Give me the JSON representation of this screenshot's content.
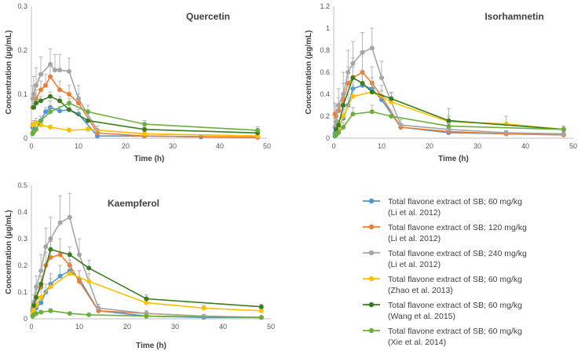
{
  "figure": {
    "background": "#ffffff"
  },
  "series_meta": [
    {
      "name": "Total flavone extract of SB; 60 mg/kg",
      "ref": "(Li et al. 2012)",
      "color": "#4e97d6"
    },
    {
      "name": "Total flavone extract of SB; 120 mg/kg",
      "ref": "(Li et al. 2012)",
      "color": "#ed7d31"
    },
    {
      "name": "Total flavone extract of SB; 240 mg/kg",
      "ref": "(Li et al. 2012)",
      "color": "#a5a5a5"
    },
    {
      "name": "Total flavone extract of SB; 60 mg/kg",
      "ref": "(Zhao et al. 2013)",
      "color": "#ffc000"
    },
    {
      "name": "Total flavone extract of SB; 60 mg/kg",
      "ref": "(Wang et al. 2015)",
      "color": "#3a7d1f"
    },
    {
      "name": "Total flavone extract of SB; 60 mg/kg",
      "ref": "(Xie et al. 2014)",
      "color": "#6aaf3d"
    }
  ],
  "chart_data": [
    {
      "type": "line",
      "title": "Quercetin",
      "xlabel": "Time (h)",
      "ylabel": "Concentration (μg/mL)",
      "xlim": [
        0,
        50
      ],
      "ylim": [
        0,
        0.3
      ],
      "xticks": [
        0,
        10,
        20,
        30,
        40,
        50
      ],
      "yticks": [
        0,
        0.1,
        0.2,
        0.3
      ],
      "ytick_labels": [
        "0",
        "0.1",
        "0.2",
        "0.3"
      ],
      "series": [
        {
          "name": "Total flavone extract of SB; 60 mg/kg (Li et al. 2012)",
          "x": [
            0.25,
            0.5,
            1,
            2,
            3,
            4,
            6,
            8,
            10,
            14,
            24,
            36,
            48
          ],
          "y": [
            0.025,
            0.03,
            0.035,
            0.04,
            0.06,
            0.07,
            0.062,
            0.065,
            0.055,
            0.005,
            0.005,
            0.003,
            0.002
          ],
          "err": [
            0.01,
            0.01,
            0.01,
            0.01,
            0.01,
            0.015,
            0.01,
            0.012,
            0.01,
            0.003,
            0.002,
            0.002,
            0.002
          ]
        },
        {
          "name": "Total flavone extract of SB; 120 mg/kg (Li et al. 2012)",
          "x": [
            0.25,
            0.5,
            1,
            2,
            3,
            4,
            6,
            8,
            10,
            14,
            24,
            48
          ],
          "y": [
            0.07,
            0.07,
            0.09,
            0.11,
            0.12,
            0.14,
            0.11,
            0.1,
            0.08,
            0.012,
            0.005,
            0.002
          ],
          "err": [
            0.02,
            0.02,
            0.02,
            0.02,
            0.025,
            0.03,
            0.02,
            0.02,
            0.02,
            0.005,
            0.003,
            0.002
          ]
        },
        {
          "name": "Total flavone extract of SB; 240 mg/kg (Li et al. 2012)",
          "x": [
            0.25,
            0.5,
            1,
            2,
            4,
            5,
            6,
            8,
            10,
            14,
            24,
            48
          ],
          "y": [
            0.09,
            0.1,
            0.12,
            0.145,
            0.168,
            0.155,
            0.155,
            0.152,
            0.09,
            0.018,
            0.01,
            0.005
          ],
          "err": [
            0.03,
            0.04,
            0.04,
            0.04,
            0.035,
            0.035,
            0.035,
            0.03,
            0.03,
            0.01,
            0.005,
            0.003
          ]
        },
        {
          "name": "Total flavone extract of SB; 60 mg/kg (Zhao et al. 2013)",
          "x": [
            0.25,
            0.5,
            1,
            2,
            4,
            8,
            12,
            24,
            48
          ],
          "y": [
            0.03,
            0.032,
            0.035,
            0.03,
            0.025,
            0.018,
            0.02,
            0.01,
            0.005
          ],
          "err": [
            0.005,
            0.005,
            0.005,
            0.005,
            0.005,
            0.005,
            0.005,
            0.003,
            0.002
          ]
        },
        {
          "name": "Total flavone extract of SB; 60 mg/kg (Wang et al. 2015)",
          "x": [
            0.5,
            1,
            2,
            4,
            6,
            8,
            12,
            24,
            48
          ],
          "y": [
            0.07,
            0.08,
            0.085,
            0.095,
            0.085,
            0.065,
            0.04,
            0.02,
            0.012
          ],
          "err": [
            0.01,
            0.01,
            0.01,
            0.01,
            0.01,
            0.01,
            0.01,
            0.005,
            0.005
          ]
        },
        {
          "name": "Total flavone extract of SB; 60 mg/kg (Xie et al. 2014)",
          "x": [
            0.25,
            0.5,
            1,
            2,
            4,
            8,
            12,
            24,
            48
          ],
          "y": [
            0.01,
            0.015,
            0.02,
            0.04,
            0.06,
            0.08,
            0.06,
            0.032,
            0.018
          ],
          "err": [
            0.005,
            0.005,
            0.005,
            0.01,
            0.01,
            0.01,
            0.015,
            0.008,
            0.008
          ]
        }
      ]
    },
    {
      "type": "line",
      "title": "Isorhamnetin",
      "xlabel": "Time (h)",
      "ylabel": "Concentration (μg/mL)",
      "xlim": [
        0,
        50
      ],
      "ylim": [
        0,
        1.2
      ],
      "xticks": [
        0,
        10,
        20,
        30,
        40,
        50
      ],
      "yticks": [
        0,
        0.2,
        0.4,
        0.6,
        0.8,
        1.0,
        1.2
      ],
      "ytick_labels": [
        "0",
        "0.2",
        "0.4",
        "0.6",
        "0.8",
        "1",
        "1.2"
      ],
      "series": [
        {
          "name": "Total flavone extract of SB; 60 mg/kg (Li et al. 2012)",
          "x": [
            0.25,
            0.5,
            1,
            2,
            3,
            4,
            6,
            8,
            10,
            14,
            24,
            36,
            48
          ],
          "y": [
            0.04,
            0.06,
            0.1,
            0.18,
            0.3,
            0.45,
            0.48,
            0.45,
            0.35,
            0.1,
            0.05,
            0.04,
            0.03
          ],
          "err": [
            0.02,
            0.03,
            0.05,
            0.08,
            0.1,
            0.12,
            0.12,
            0.1,
            0.08,
            0.03,
            0.02,
            0.02,
            0.02
          ]
        },
        {
          "name": "Total flavone extract of SB; 120 mg/kg (Li et al. 2012)",
          "x": [
            0.25,
            0.5,
            1,
            2,
            3,
            4,
            6,
            8,
            10,
            14,
            24,
            36,
            48
          ],
          "y": [
            0.22,
            0.2,
            0.25,
            0.35,
            0.5,
            0.55,
            0.6,
            0.5,
            0.38,
            0.1,
            0.06,
            0.04,
            0.03
          ],
          "err": [
            0.1,
            0.1,
            0.12,
            0.15,
            0.15,
            0.18,
            0.18,
            0.15,
            0.1,
            0.03,
            0.02,
            0.02,
            0.02
          ]
        },
        {
          "name": "Total flavone extract of SB; 240 mg/kg (Li et al. 2012)",
          "x": [
            0.25,
            0.5,
            1,
            2,
            3,
            4,
            6,
            8,
            10,
            14,
            24,
            36,
            48
          ],
          "y": [
            0.1,
            0.15,
            0.3,
            0.4,
            0.6,
            0.68,
            0.78,
            0.82,
            0.55,
            0.12,
            0.08,
            0.05,
            0.04
          ],
          "err": [
            0.08,
            0.1,
            0.15,
            0.2,
            0.2,
            0.2,
            0.18,
            0.18,
            0.15,
            0.05,
            0.03,
            0.02,
            0.02
          ]
        },
        {
          "name": "Total flavone extract of SB; 60 mg/kg (Zhao et al. 2013)",
          "x": [
            0.25,
            0.5,
            1,
            2,
            4,
            8,
            12,
            24,
            36,
            48
          ],
          "y": [
            0.02,
            0.03,
            0.08,
            0.2,
            0.38,
            0.42,
            0.33,
            0.15,
            0.13,
            0.08
          ],
          "err": [
            0.01,
            0.02,
            0.04,
            0.08,
            0.1,
            0.1,
            0.08,
            0.12,
            0.07,
            0.03
          ]
        },
        {
          "name": "Total flavone extract of SB; 60 mg/kg (Wang et al. 2015)",
          "x": [
            0.5,
            1,
            2,
            4,
            6,
            8,
            12,
            24,
            48
          ],
          "y": [
            0.08,
            0.12,
            0.3,
            0.55,
            0.5,
            0.42,
            0.36,
            0.16,
            0.08
          ],
          "err": [
            0.04,
            0.05,
            0.1,
            0.1,
            0.1,
            0.08,
            0.06,
            0.04,
            0.03
          ]
        },
        {
          "name": "Total flavone extract of SB; 60 mg/kg (Xie et al. 2014)",
          "x": [
            0.25,
            0.5,
            1,
            2,
            4,
            8,
            12,
            24,
            48
          ],
          "y": [
            0.02,
            0.03,
            0.05,
            0.1,
            0.22,
            0.24,
            0.2,
            0.11,
            0.08
          ],
          "err": [
            0.01,
            0.02,
            0.02,
            0.04,
            0.06,
            0.06,
            0.05,
            0.03,
            0.03
          ]
        }
      ]
    },
    {
      "type": "line",
      "title": "Kaempferol",
      "xlabel": "Time (h)",
      "ylabel": "Concentration (μg/mL)",
      "xlim": [
        0,
        50
      ],
      "ylim": [
        0,
        0.5
      ],
      "xticks": [
        0,
        10,
        20,
        30,
        40,
        50
      ],
      "yticks": [
        0,
        0.1,
        0.2,
        0.3,
        0.4,
        0.5
      ],
      "ytick_labels": [
        "0",
        "0.1",
        "0.2",
        "0.3",
        "0.4",
        "0.5"
      ],
      "series": [
        {
          "name": "Total flavone extract of SB; 60 mg/kg (Li et al. 2012)",
          "x": [
            0.25,
            0.5,
            1,
            2,
            3,
            4,
            6,
            8,
            10,
            14,
            24,
            36,
            48
          ],
          "y": [
            0.02,
            0.03,
            0.04,
            0.06,
            0.1,
            0.13,
            0.16,
            0.18,
            0.15,
            0.03,
            0.01,
            0.005,
            0.005
          ],
          "err": [
            0.01,
            0.01,
            0.02,
            0.02,
            0.03,
            0.04,
            0.04,
            0.04,
            0.03,
            0.01,
            0.005,
            0.003,
            0.003
          ]
        },
        {
          "name": "Total flavone extract of SB; 120 mg/kg (Li et al. 2012)",
          "x": [
            0.25,
            0.5,
            1,
            2,
            3,
            4,
            6,
            8,
            10,
            14,
            24,
            36,
            48
          ],
          "y": [
            0.03,
            0.05,
            0.08,
            0.12,
            0.2,
            0.23,
            0.24,
            0.2,
            0.14,
            0.03,
            0.02,
            0.01,
            0.005
          ],
          "err": [
            0.01,
            0.02,
            0.03,
            0.04,
            0.05,
            0.06,
            0.06,
            0.05,
            0.04,
            0.01,
            0.01,
            0.005,
            0.003
          ]
        },
        {
          "name": "Total flavone extract of SB; 240 mg/kg (Li et al. 2012)",
          "x": [
            0.25,
            0.5,
            1,
            2,
            3,
            4,
            6,
            8,
            10,
            14,
            24,
            36,
            48
          ],
          "y": [
            0.04,
            0.06,
            0.12,
            0.18,
            0.27,
            0.3,
            0.36,
            0.38,
            0.24,
            0.04,
            0.02,
            0.01,
            0.005
          ],
          "err": [
            0.02,
            0.03,
            0.04,
            0.06,
            0.07,
            0.08,
            0.1,
            0.09,
            0.06,
            0.015,
            0.01,
            0.005,
            0.003
          ]
        },
        {
          "name": "Total flavone extract of SB; 60 mg/kg (Zhao et al. 2013)",
          "x": [
            0.25,
            0.5,
            1,
            2,
            4,
            8,
            12,
            24,
            36,
            48
          ],
          "y": [
            0.02,
            0.03,
            0.05,
            0.08,
            0.12,
            0.17,
            0.14,
            0.06,
            0.04,
            0.03
          ],
          "err": [
            0.01,
            0.01,
            0.02,
            0.03,
            0.03,
            0.04,
            0.03,
            0.02,
            0.01,
            0.01
          ]
        },
        {
          "name": "Total flavone extract of SB; 60 mg/kg (Wang et al. 2015)",
          "x": [
            0.5,
            1,
            2,
            4,
            8,
            12,
            24,
            48
          ],
          "y": [
            0.05,
            0.08,
            0.13,
            0.26,
            0.24,
            0.19,
            0.075,
            0.045
          ],
          "err": [
            0.02,
            0.02,
            0.03,
            0.03,
            0.03,
            0.03,
            0.015,
            0.01
          ]
        },
        {
          "name": "Total flavone extract of SB; 60 mg/kg (Xie et al. 2014)",
          "x": [
            0.25,
            0.5,
            1,
            2,
            4,
            8,
            12,
            24,
            48
          ],
          "y": [
            0.01,
            0.015,
            0.02,
            0.025,
            0.03,
            0.02,
            0.015,
            0.01,
            0.005
          ],
          "err": [
            0.005,
            0.005,
            0.005,
            0.005,
            0.008,
            0.005,
            0.005,
            0.003,
            0.002
          ]
        }
      ]
    }
  ]
}
